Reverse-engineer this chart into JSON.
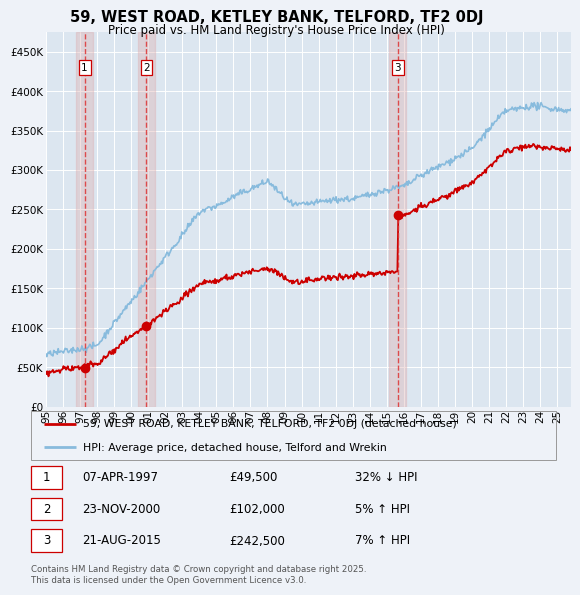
{
  "title": "59, WEST ROAD, KETLEY BANK, TELFORD, TF2 0DJ",
  "subtitle": "Price paid vs. HM Land Registry's House Price Index (HPI)",
  "bg_color": "#eef2f8",
  "plot_bg_color": "#dce6f0",
  "grid_color": "#ffffff",
  "sale_dates_num": [
    1997.27,
    2000.9,
    2015.65
  ],
  "sale_prices": [
    49500,
    102000,
    242500
  ],
  "sale_labels": [
    "1",
    "2",
    "3"
  ],
  "hpi_line_color": "#88bbdd",
  "price_line_color": "#cc0000",
  "vline_color": "#dd3333",
  "vspan_color": "#ddaaaa",
  "marker_color": "#cc0000",
  "legend_entries": [
    "59, WEST ROAD, KETLEY BANK, TELFORD, TF2 0DJ (detached house)",
    "HPI: Average price, detached house, Telford and Wrekin"
  ],
  "table_rows": [
    [
      "1",
      "07-APR-1997",
      "£49,500",
      "32% ↓ HPI"
    ],
    [
      "2",
      "23-NOV-2000",
      "£102,000",
      "5% ↑ HPI"
    ],
    [
      "3",
      "21-AUG-2015",
      "£242,500",
      "7% ↑ HPI"
    ]
  ],
  "footer": "Contains HM Land Registry data © Crown copyright and database right 2025.\nThis data is licensed under the Open Government Licence v3.0.",
  "ylim": [
    0,
    475000
  ],
  "yticks": [
    0,
    50000,
    100000,
    150000,
    200000,
    250000,
    300000,
    350000,
    400000,
    450000
  ],
  "ytick_labels": [
    "£0",
    "£50K",
    "£100K",
    "£150K",
    "£200K",
    "£250K",
    "£300K",
    "£350K",
    "£400K",
    "£450K"
  ],
  "xlim_start": 1995.0,
  "xlim_end": 2025.8,
  "xtick_years": [
    1995,
    1996,
    1997,
    1998,
    1999,
    2000,
    2001,
    2002,
    2003,
    2004,
    2005,
    2006,
    2007,
    2008,
    2009,
    2010,
    2011,
    2012,
    2013,
    2014,
    2015,
    2016,
    2017,
    2018,
    2019,
    2020,
    2021,
    2022,
    2023,
    2024,
    2025
  ]
}
